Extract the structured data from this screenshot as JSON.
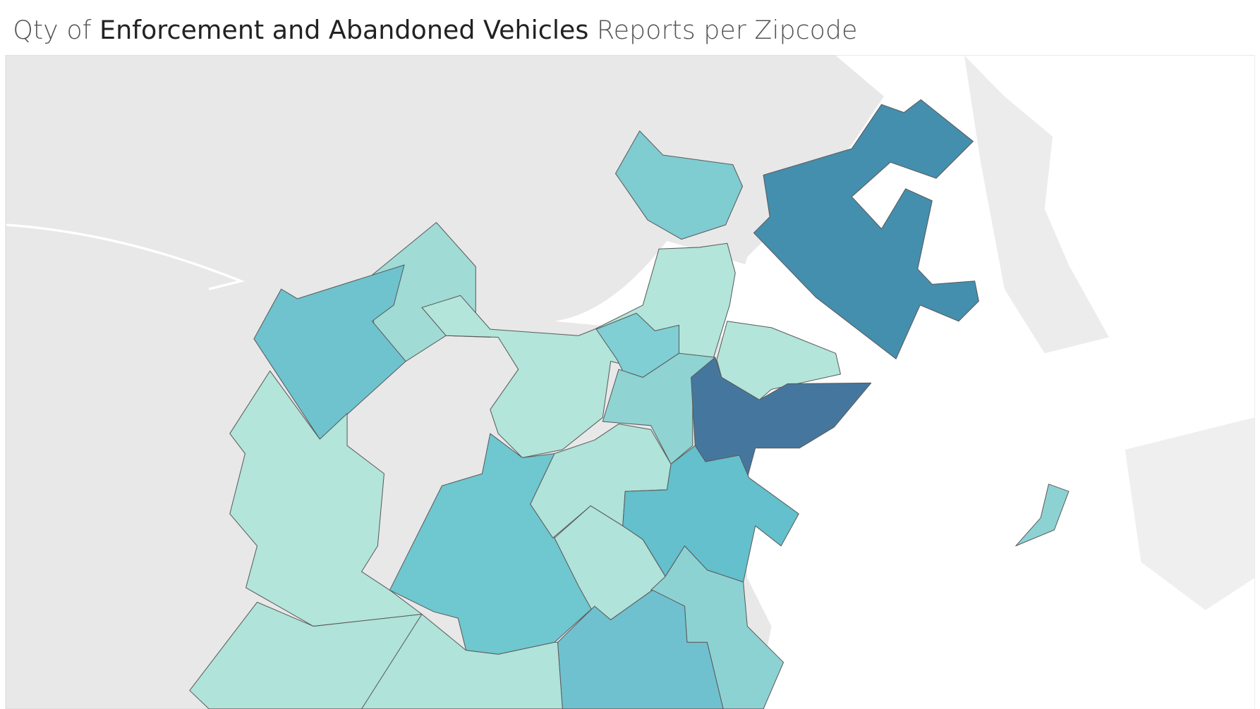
{
  "header": {
    "title_parts": [
      "Qty of ",
      "Enforcement and Abandoned Vehicles",
      " Reports per Zipcode"
    ]
  }
}
